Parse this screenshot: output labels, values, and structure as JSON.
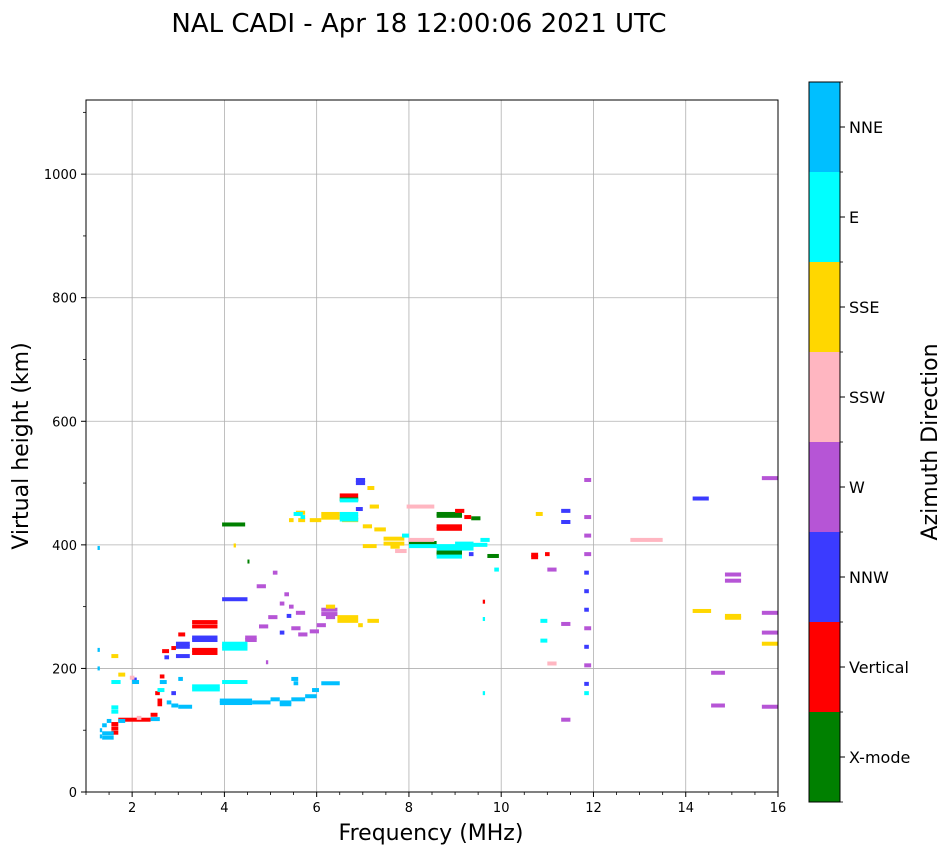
{
  "chart_data": {
    "type": "scatter",
    "subtype": "ionogram",
    "title": "NAL CADI - Apr 18 12:00:06 2021 UTC",
    "xlabel": "Frequency (MHz)",
    "ylabel": "Virtual height (km)",
    "xlim": [
      1,
      16
    ],
    "ylim": [
      0,
      1120
    ],
    "xticks": [
      2,
      4,
      6,
      8,
      10,
      12,
      14,
      16
    ],
    "yticks": [
      0,
      200,
      400,
      600,
      800,
      1000
    ],
    "grid": true,
    "colorbar": {
      "label": "Azimuth Direction",
      "categories": [
        {
          "name": "X-mode",
          "color": "#008000"
        },
        {
          "name": "Vertical",
          "color": "#ff0000"
        },
        {
          "name": "NNW",
          "color": "#3b3bff"
        },
        {
          "name": "W",
          "color": "#b655d6"
        },
        {
          "name": "SSW",
          "color": "#ffb6c1"
        },
        {
          "name": "SSE",
          "color": "#ffd700"
        },
        {
          "name": "E",
          "color": "#00ffff"
        },
        {
          "name": "NNE",
          "color": "#00bfff"
        }
      ]
    },
    "series": [
      {
        "name": "X-mode",
        "segments": [
          [
            3.95,
            4.45,
            433
          ],
          [
            4.5,
            4.52,
            373
          ],
          [
            8.6,
            9.15,
            450
          ],
          [
            8.6,
            9.15,
            447
          ],
          [
            8.6,
            9.15,
            388
          ],
          [
            8.6,
            9.15,
            385
          ],
          [
            8.0,
            8.6,
            403
          ],
          [
            9.7,
            9.95,
            382
          ],
          [
            9.35,
            9.55,
            443
          ],
          [
            6.5,
            6.9,
            474
          ]
        ]
      },
      {
        "name": "Vertical",
        "segments": [
          [
            1.55,
            1.7,
            110
          ],
          [
            1.55,
            1.7,
            103
          ],
          [
            1.55,
            1.7,
            96
          ],
          [
            1.7,
            2.4,
            117
          ],
          [
            2.4,
            2.55,
            125
          ],
          [
            2.55,
            2.65,
            142
          ],
          [
            2.55,
            2.65,
            148
          ],
          [
            2.5,
            2.6,
            160
          ],
          [
            2.6,
            2.7,
            187
          ],
          [
            2.65,
            2.8,
            228
          ],
          [
            2.85,
            2.95,
            233
          ],
          [
            3.0,
            3.15,
            255
          ],
          [
            3.3,
            3.85,
            275
          ],
          [
            3.3,
            3.85,
            268
          ],
          [
            3.3,
            3.85,
            230
          ],
          [
            3.3,
            3.85,
            225
          ],
          [
            8.6,
            9.15,
            430
          ],
          [
            8.6,
            9.15,
            426
          ],
          [
            9.2,
            9.35,
            445
          ],
          [
            9.0,
            9.2,
            455
          ],
          [
            10.65,
            10.8,
            384
          ],
          [
            10.65,
            10.8,
            380
          ],
          [
            10.95,
            11.05,
            385
          ],
          [
            9.6,
            9.65,
            308
          ],
          [
            6.5,
            6.9,
            480
          ]
        ]
      },
      {
        "name": "NNW",
        "segments": [
          [
            2.95,
            3.25,
            240
          ],
          [
            2.95,
            3.25,
            235
          ],
          [
            2.95,
            3.25,
            220
          ],
          [
            3.3,
            3.85,
            250
          ],
          [
            3.3,
            3.85,
            246
          ],
          [
            3.95,
            4.5,
            312
          ],
          [
            5.35,
            5.45,
            285
          ],
          [
            5.2,
            5.3,
            258
          ],
          [
            6.85,
            7.05,
            505
          ],
          [
            6.85,
            7.05,
            500
          ],
          [
            6.85,
            7.0,
            458
          ],
          [
            9.3,
            9.4,
            385
          ],
          [
            11.3,
            11.5,
            437
          ],
          [
            11.3,
            11.5,
            455
          ],
          [
            11.8,
            11.9,
            355
          ],
          [
            11.8,
            11.9,
            325
          ],
          [
            11.8,
            11.9,
            295
          ],
          [
            11.8,
            11.9,
            235
          ],
          [
            11.8,
            11.9,
            175
          ],
          [
            14.15,
            14.5,
            475
          ],
          [
            2.0,
            2.1,
            182
          ],
          [
            2.7,
            2.8,
            218
          ],
          [
            2.85,
            2.95,
            160
          ]
        ]
      },
      {
        "name": "W",
        "segments": [
          [
            4.45,
            4.7,
            250
          ],
          [
            4.45,
            4.7,
            246
          ],
          [
            4.75,
            4.95,
            268
          ],
          [
            4.95,
            5.15,
            283
          ],
          [
            5.4,
            5.5,
            300
          ],
          [
            5.55,
            5.75,
            290
          ],
          [
            5.6,
            5.8,
            255
          ],
          [
            5.45,
            5.65,
            265
          ],
          [
            5.85,
            6.05,
            260
          ],
          [
            6.1,
            6.45,
            295
          ],
          [
            6.1,
            6.45,
            288
          ],
          [
            6.2,
            6.4,
            283
          ],
          [
            6.0,
            6.2,
            270
          ],
          [
            5.3,
            5.4,
            320
          ],
          [
            5.2,
            5.3,
            305
          ],
          [
            4.7,
            4.9,
            333
          ],
          [
            5.05,
            5.15,
            355
          ],
          [
            4.9,
            4.95,
            210
          ],
          [
            11.0,
            11.2,
            360
          ],
          [
            11.3,
            11.5,
            272
          ],
          [
            11.3,
            11.5,
            117
          ],
          [
            11.8,
            11.95,
            505
          ],
          [
            11.8,
            11.95,
            445
          ],
          [
            11.8,
            11.95,
            415
          ],
          [
            11.8,
            11.95,
            385
          ],
          [
            11.8,
            11.95,
            265
          ],
          [
            11.8,
            11.95,
            205
          ],
          [
            14.55,
            14.85,
            193
          ],
          [
            14.55,
            14.85,
            140
          ],
          [
            14.85,
            15.2,
            352
          ],
          [
            14.85,
            15.2,
            342
          ],
          [
            15.65,
            16.0,
            508
          ],
          [
            15.65,
            16.0,
            290
          ],
          [
            15.65,
            16.0,
            258
          ],
          [
            15.65,
            16.0,
            138
          ]
        ]
      },
      {
        "name": "SSW",
        "segments": [
          [
            7.95,
            8.55,
            462
          ],
          [
            8.0,
            8.55,
            408
          ],
          [
            7.7,
            7.95,
            390
          ],
          [
            12.8,
            13.5,
            408
          ],
          [
            11.0,
            11.2,
            208
          ],
          [
            1.95,
            2.05,
            185
          ],
          [
            2.1,
            2.2,
            120
          ]
        ]
      },
      {
        "name": "SSE",
        "segments": [
          [
            1.55,
            1.7,
            220
          ],
          [
            1.7,
            1.85,
            190
          ],
          [
            5.6,
            5.75,
            440
          ],
          [
            5.85,
            6.1,
            440
          ],
          [
            5.55,
            5.75,
            452
          ],
          [
            6.1,
            6.5,
            450
          ],
          [
            6.1,
            6.5,
            444
          ],
          [
            6.55,
            6.9,
            440
          ],
          [
            7.0,
            7.2,
            430
          ],
          [
            7.25,
            7.5,
            425
          ],
          [
            7.0,
            7.3,
            398
          ],
          [
            7.45,
            7.9,
            410
          ],
          [
            7.45,
            7.9,
            402
          ],
          [
            7.6,
            7.8,
            397
          ],
          [
            7.1,
            7.25,
            492
          ],
          [
            7.15,
            7.35,
            462
          ],
          [
            5.4,
            5.5,
            440
          ],
          [
            6.2,
            6.4,
            300
          ],
          [
            6.45,
            6.9,
            283
          ],
          [
            6.45,
            6.9,
            277
          ],
          [
            6.9,
            7.0,
            270
          ],
          [
            7.1,
            7.35,
            277
          ],
          [
            10.75,
            10.9,
            450
          ],
          [
            14.15,
            14.55,
            293
          ],
          [
            14.85,
            15.2,
            285
          ],
          [
            14.85,
            15.2,
            282
          ],
          [
            15.65,
            16.0,
            240
          ],
          [
            4.2,
            4.25,
            399
          ]
        ]
      },
      {
        "name": "E",
        "segments": [
          [
            1.55,
            1.75,
            178
          ],
          [
            1.55,
            1.7,
            137
          ],
          [
            1.55,
            1.7,
            130
          ],
          [
            3.3,
            3.9,
            171
          ],
          [
            3.3,
            3.9,
            166
          ],
          [
            3.95,
            4.5,
            240
          ],
          [
            3.95,
            4.5,
            236
          ],
          [
            3.95,
            4.5,
            232
          ],
          [
            3.95,
            4.5,
            178
          ],
          [
            2.55,
            2.7,
            165
          ],
          [
            5.5,
            5.7,
            450
          ],
          [
            6.5,
            6.9,
            450
          ],
          [
            6.5,
            6.9,
            445
          ],
          [
            6.5,
            6.9,
            441
          ],
          [
            6.5,
            6.9,
            472
          ],
          [
            7.85,
            8.0,
            415
          ],
          [
            8.0,
            8.6,
            398
          ],
          [
            8.6,
            9.4,
            398
          ],
          [
            8.6,
            9.4,
            394
          ],
          [
            9.0,
            9.4,
            402
          ],
          [
            9.4,
            9.7,
            400
          ],
          [
            9.55,
            9.75,
            408
          ],
          [
            8.6,
            9.15,
            381
          ],
          [
            9.85,
            9.95,
            360
          ],
          [
            9.6,
            9.65,
            280
          ],
          [
            10.85,
            11.0,
            277
          ],
          [
            10.85,
            11.0,
            245
          ],
          [
            11.8,
            11.9,
            160
          ],
          [
            9.6,
            9.65,
            160
          ],
          [
            5.65,
            5.75,
            445
          ]
        ]
      },
      {
        "name": "NNE",
        "segments": [
          [
            1.25,
            1.3,
            230
          ],
          [
            1.25,
            1.3,
            200
          ],
          [
            1.3,
            1.35,
            100
          ],
          [
            1.3,
            1.35,
            90
          ],
          [
            1.35,
            1.45,
            108
          ],
          [
            1.45,
            1.55,
            115
          ],
          [
            1.35,
            1.6,
            95
          ],
          [
            1.35,
            1.6,
            88
          ],
          [
            2.0,
            2.15,
            178
          ],
          [
            2.6,
            2.75,
            178
          ],
          [
            2.75,
            2.85,
            145
          ],
          [
            2.85,
            3.0,
            140
          ],
          [
            3.0,
            3.3,
            138
          ],
          [
            3.0,
            3.1,
            183
          ],
          [
            3.9,
            4.6,
            148
          ],
          [
            3.9,
            4.6,
            144
          ],
          [
            4.6,
            5.0,
            145
          ],
          [
            5.0,
            5.2,
            150
          ],
          [
            5.2,
            5.45,
            145
          ],
          [
            5.2,
            5.45,
            142
          ],
          [
            5.45,
            5.75,
            150
          ],
          [
            5.75,
            6.0,
            155
          ],
          [
            5.9,
            6.05,
            165
          ],
          [
            6.1,
            6.5,
            176
          ],
          [
            5.45,
            5.6,
            183
          ],
          [
            5.5,
            5.6,
            176
          ],
          [
            1.25,
            1.3,
            395
          ],
          [
            2.4,
            2.6,
            118
          ],
          [
            1.7,
            1.85,
            115
          ]
        ]
      }
    ]
  }
}
